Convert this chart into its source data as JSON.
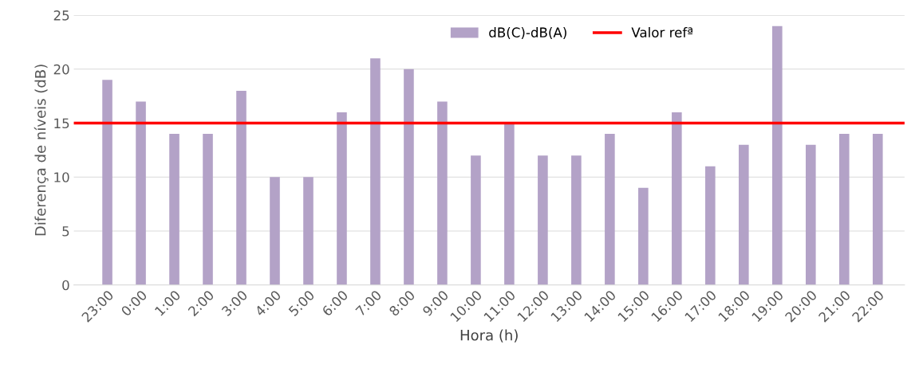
{
  "chart_data": {
    "type": "bar",
    "xlabel": "Hora (h)",
    "ylabel": "Diferença de níveis (dB)",
    "categories": [
      "23:00",
      "0:00",
      "1:00",
      "2:00",
      "3:00",
      "4:00",
      "5:00",
      "6:00",
      "7:00",
      "8:00",
      "9:00",
      "10:00",
      "11:00",
      "12:00",
      "13:00",
      "14:00",
      "15:00",
      "16:00",
      "17:00",
      "18:00",
      "19:00",
      "20:00",
      "21:00",
      "22:00"
    ],
    "series": [
      {
        "name": "dB(C)-dB(A)",
        "color": "#b3a2c7",
        "values": [
          19,
          17,
          14,
          14,
          18,
          10,
          10,
          16,
          21,
          20,
          17,
          12,
          15,
          12,
          12,
          14,
          9,
          16,
          11,
          13,
          24,
          13,
          14,
          14
        ]
      }
    ],
    "ref_lines": [
      {
        "axis": "y",
        "value": 15,
        "label": "Valor refª",
        "color": "#ff0000",
        "line_style": "solid"
      }
    ],
    "ylim": [
      0,
      25
    ],
    "yticks": [
      0,
      5,
      10,
      15,
      20,
      25
    ],
    "grid": "y",
    "legend": "top"
  }
}
